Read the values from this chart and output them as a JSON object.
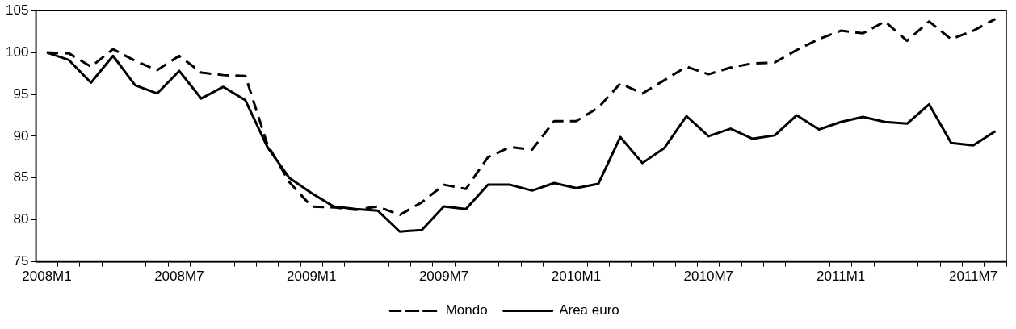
{
  "chart_data": {
    "type": "line",
    "categories": [
      "2008M1",
      null,
      null,
      null,
      null,
      null,
      "2008M7",
      null,
      null,
      null,
      null,
      null,
      "2009M1",
      null,
      null,
      null,
      null,
      null,
      "2009M7",
      null,
      null,
      null,
      null,
      null,
      "2010M1",
      null,
      null,
      null,
      null,
      null,
      "2010M7",
      null,
      null,
      null,
      null,
      null,
      "2011M1",
      null,
      null,
      null,
      null,
      null,
      "2011M7",
      null
    ],
    "series": [
      {
        "name": "Mondo",
        "color": "#000000",
        "line_style": "dashed",
        "values": [
          100,
          99.9,
          98.3,
          100.4,
          99.0,
          97.9,
          99.6,
          97.6,
          97.3,
          97.2,
          89.0,
          84.5,
          81.6,
          81.5,
          81.2,
          81.6,
          80.6,
          82.1,
          84.2,
          83.7,
          87.5,
          88.7,
          88.4,
          91.8,
          91.8,
          93.4,
          96.3,
          95.1,
          96.7,
          98.3,
          97.4,
          98.2,
          98.7,
          98.8,
          100.3,
          101.6,
          102.6,
          102.3,
          103.7,
          101.4,
          103.7,
          101.6,
          102.6,
          104.0
        ]
      },
      {
        "name": "Area euro",
        "color": "#000000",
        "line_style": "solid",
        "values": [
          100,
          99.1,
          96.4,
          99.6,
          96.1,
          95.1,
          97.8,
          94.5,
          95.9,
          94.3,
          88.7,
          85.0,
          83.2,
          81.6,
          81.3,
          81.1,
          78.6,
          78.8,
          81.6,
          81.3,
          84.2,
          84.2,
          83.5,
          84.4,
          83.8,
          84.3,
          89.9,
          86.8,
          88.6,
          92.4,
          90.0,
          90.9,
          89.7,
          90.1,
          92.5,
          90.8,
          91.7,
          92.3,
          91.7,
          91.5,
          93.8,
          89.2,
          88.9,
          90.6
        ]
      }
    ],
    "ylim": [
      75,
      105
    ],
    "yticks": [
      75,
      80,
      85,
      90,
      95,
      100,
      105
    ],
    "grid": false,
    "legend": "bottom",
    "marker": "none"
  }
}
